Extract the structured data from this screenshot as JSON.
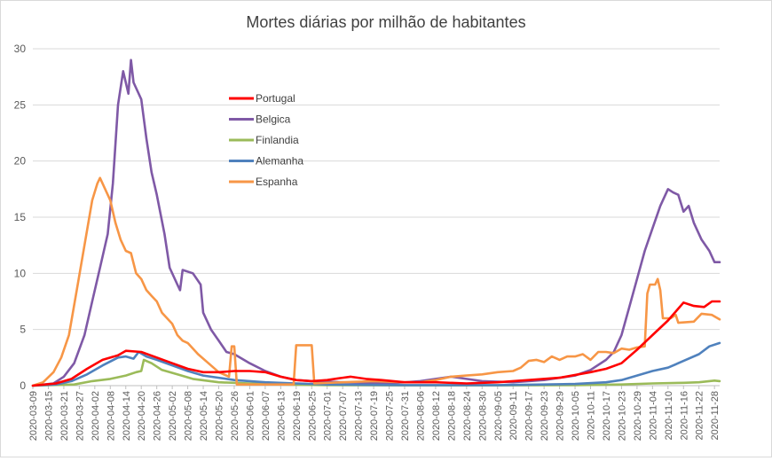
{
  "chart_data": {
    "type": "line",
    "title": "Mortes diárias por milhão de habitantes",
    "xlabel": "",
    "ylabel": "",
    "ylim": [
      0,
      30
    ],
    "yticks": [
      0,
      5,
      10,
      15,
      20,
      25,
      30
    ],
    "grid": "horizontal",
    "legend_position": "top-left-inside",
    "x_start": "2020-03-09",
    "x_end": "2020-11-30",
    "xtick_labels": [
      "2020-03-09",
      "2020-03-15",
      "2020-03-21",
      "2020-03-27",
      "2020-04-02",
      "2020-04-08",
      "2020-04-14",
      "2020-04-20",
      "2020-04-26",
      "2020-05-02",
      "2020-05-08",
      "2020-05-14",
      "2020-05-20",
      "2020-05-26",
      "2020-06-01",
      "2020-06-07",
      "2020-06-13",
      "2020-06-19",
      "2020-06-25",
      "2020-07-01",
      "2020-07-07",
      "2020-07-13",
      "2020-07-19",
      "2020-07-25",
      "2020-07-31",
      "2020-08-06",
      "2020-08-12",
      "2020-08-18",
      "2020-08-24",
      "2020-08-30",
      "2020-09-05",
      "2020-09-11",
      "2020-09-17",
      "2020-09-23",
      "2020-09-29",
      "2020-10-05",
      "2020-10-11",
      "2020-10-17",
      "2020-10-23",
      "2020-10-29",
      "2020-11-04",
      "2020-11-10",
      "2020-11-16",
      "2020-11-22",
      "2020-11-28"
    ],
    "series": [
      {
        "name": "Portugal",
        "color": "#ff0000",
        "points": [
          [
            "2020-03-09",
            0
          ],
          [
            "2020-03-18",
            0.2
          ],
          [
            "2020-03-24",
            0.6
          ],
          [
            "2020-03-30",
            1.5
          ],
          [
            "2020-04-05",
            2.3
          ],
          [
            "2020-04-11",
            2.7
          ],
          [
            "2020-04-14",
            3.1
          ],
          [
            "2020-04-20",
            3.0
          ],
          [
            "2020-04-26",
            2.5
          ],
          [
            "2020-05-02",
            2.0
          ],
          [
            "2020-05-08",
            1.5
          ],
          [
            "2020-05-14",
            1.2
          ],
          [
            "2020-05-20",
            1.2
          ],
          [
            "2020-05-26",
            1.3
          ],
          [
            "2020-06-01",
            1.3
          ],
          [
            "2020-06-07",
            1.2
          ],
          [
            "2020-06-13",
            0.8
          ],
          [
            "2020-06-19",
            0.5
          ],
          [
            "2020-06-25",
            0.4
          ],
          [
            "2020-07-01",
            0.5
          ],
          [
            "2020-07-07",
            0.7
          ],
          [
            "2020-07-10",
            0.8
          ],
          [
            "2020-07-16",
            0.6
          ],
          [
            "2020-07-22",
            0.5
          ],
          [
            "2020-07-31",
            0.3
          ],
          [
            "2020-08-12",
            0.3
          ],
          [
            "2020-08-24",
            0.2
          ],
          [
            "2020-09-05",
            0.3
          ],
          [
            "2020-09-17",
            0.5
          ],
          [
            "2020-09-29",
            0.7
          ],
          [
            "2020-10-11",
            1.2
          ],
          [
            "2020-10-17",
            1.5
          ],
          [
            "2020-10-23",
            2.0
          ],
          [
            "2020-10-29",
            3.2
          ],
          [
            "2020-11-04",
            4.5
          ],
          [
            "2020-11-10",
            5.8
          ],
          [
            "2020-11-16",
            7.4
          ],
          [
            "2020-11-20",
            7.1
          ],
          [
            "2020-11-24",
            7.0
          ],
          [
            "2020-11-27",
            7.5
          ],
          [
            "2020-11-30",
            7.5
          ]
        ]
      },
      {
        "name": "Belgica",
        "color": "#7f59a6",
        "points": [
          [
            "2020-03-09",
            0
          ],
          [
            "2020-03-17",
            0.2
          ],
          [
            "2020-03-21",
            0.8
          ],
          [
            "2020-03-25",
            2.0
          ],
          [
            "2020-03-29",
            4.5
          ],
          [
            "2020-04-01",
            7.5
          ],
          [
            "2020-04-04",
            10.5
          ],
          [
            "2020-04-07",
            13.5
          ],
          [
            "2020-04-09",
            18.0
          ],
          [
            "2020-04-11",
            25.0
          ],
          [
            "2020-04-13",
            28.0
          ],
          [
            "2020-04-15",
            26.0
          ],
          [
            "2020-04-16",
            29.0
          ],
          [
            "2020-04-17",
            27.0
          ],
          [
            "2020-04-20",
            25.5
          ],
          [
            "2020-04-22",
            22.0
          ],
          [
            "2020-04-24",
            19.0
          ],
          [
            "2020-04-26",
            17.0
          ],
          [
            "2020-04-29",
            13.5
          ],
          [
            "2020-05-01",
            10.5
          ],
          [
            "2020-05-04",
            9.0
          ],
          [
            "2020-05-05",
            8.5
          ],
          [
            "2020-05-06",
            10.3
          ],
          [
            "2020-05-10",
            10.0
          ],
          [
            "2020-05-13",
            9.0
          ],
          [
            "2020-05-14",
            6.5
          ],
          [
            "2020-05-17",
            5.0
          ],
          [
            "2020-05-20",
            4.0
          ],
          [
            "2020-05-23",
            3.0
          ],
          [
            "2020-05-26",
            2.8
          ],
          [
            "2020-06-01",
            2.0
          ],
          [
            "2020-06-07",
            1.3
          ],
          [
            "2020-06-13",
            0.8
          ],
          [
            "2020-06-19",
            0.5
          ],
          [
            "2020-06-25",
            0.4
          ],
          [
            "2020-07-07",
            0.3
          ],
          [
            "2020-07-25",
            0.2
          ],
          [
            "2020-08-06",
            0.4
          ],
          [
            "2020-08-12",
            0.6
          ],
          [
            "2020-08-18",
            0.8
          ],
          [
            "2020-08-24",
            0.6
          ],
          [
            "2020-08-30",
            0.4
          ],
          [
            "2020-09-11",
            0.3
          ],
          [
            "2020-09-23",
            0.5
          ],
          [
            "2020-10-05",
            0.9
          ],
          [
            "2020-10-11",
            1.4
          ],
          [
            "2020-10-17",
            2.3
          ],
          [
            "2020-10-20",
            3.0
          ],
          [
            "2020-10-23",
            4.5
          ],
          [
            "2020-10-26",
            7.0
          ],
          [
            "2020-10-29",
            9.5
          ],
          [
            "2020-11-01",
            12.0
          ],
          [
            "2020-11-04",
            14.0
          ],
          [
            "2020-11-07",
            16.0
          ],
          [
            "2020-11-10",
            17.5
          ],
          [
            "2020-11-12",
            17.2
          ],
          [
            "2020-11-14",
            17.0
          ],
          [
            "2020-11-16",
            15.5
          ],
          [
            "2020-11-18",
            16.0
          ],
          [
            "2020-11-20",
            14.5
          ],
          [
            "2020-11-23",
            13.0
          ],
          [
            "2020-11-26",
            12.0
          ],
          [
            "2020-11-28",
            11.0
          ],
          [
            "2020-11-30",
            11.0
          ]
        ]
      },
      {
        "name": "Finlandia",
        "color": "#9bbb59",
        "points": [
          [
            "2020-03-09",
            0
          ],
          [
            "2020-03-25",
            0.1
          ],
          [
            "2020-04-01",
            0.4
          ],
          [
            "2020-04-08",
            0.6
          ],
          [
            "2020-04-14",
            0.9
          ],
          [
            "2020-04-18",
            1.2
          ],
          [
            "2020-04-20",
            1.3
          ],
          [
            "2020-04-21",
            2.3
          ],
          [
            "2020-04-24",
            2.0
          ],
          [
            "2020-04-28",
            1.4
          ],
          [
            "2020-05-04",
            1.0
          ],
          [
            "2020-05-10",
            0.6
          ],
          [
            "2020-05-20",
            0.3
          ],
          [
            "2020-06-01",
            0.2
          ],
          [
            "2020-06-13",
            0.1
          ],
          [
            "2020-07-01",
            0.05
          ],
          [
            "2020-08-01",
            0.02
          ],
          [
            "2020-09-05",
            0.02
          ],
          [
            "2020-10-05",
            0.05
          ],
          [
            "2020-10-23",
            0.1
          ],
          [
            "2020-11-04",
            0.2
          ],
          [
            "2020-11-16",
            0.25
          ],
          [
            "2020-11-22",
            0.3
          ],
          [
            "2020-11-28",
            0.45
          ],
          [
            "2020-11-30",
            0.4
          ]
        ]
      },
      {
        "name": "Alemanha",
        "color": "#4f81bd",
        "points": [
          [
            "2020-03-09",
            0
          ],
          [
            "2020-03-18",
            0.1
          ],
          [
            "2020-03-24",
            0.4
          ],
          [
            "2020-03-30",
            1.0
          ],
          [
            "2020-04-05",
            1.8
          ],
          [
            "2020-04-11",
            2.5
          ],
          [
            "2020-04-14",
            2.6
          ],
          [
            "2020-04-17",
            2.4
          ],
          [
            "2020-04-19",
            3.0
          ],
          [
            "2020-04-22",
            2.6
          ],
          [
            "2020-04-26",
            2.3
          ],
          [
            "2020-05-02",
            1.8
          ],
          [
            "2020-05-08",
            1.3
          ],
          [
            "2020-05-14",
            0.9
          ],
          [
            "2020-05-20",
            0.7
          ],
          [
            "2020-05-26",
            0.5
          ],
          [
            "2020-06-01",
            0.4
          ],
          [
            "2020-06-07",
            0.3
          ],
          [
            "2020-06-19",
            0.2
          ],
          [
            "2020-07-01",
            0.1
          ],
          [
            "2020-08-01",
            0.05
          ],
          [
            "2020-09-05",
            0.05
          ],
          [
            "2020-09-23",
            0.1
          ],
          [
            "2020-10-05",
            0.15
          ],
          [
            "2020-10-17",
            0.3
          ],
          [
            "2020-10-23",
            0.5
          ],
          [
            "2020-10-29",
            0.9
          ],
          [
            "2020-11-04",
            1.3
          ],
          [
            "2020-11-10",
            1.6
          ],
          [
            "2020-11-16",
            2.2
          ],
          [
            "2020-11-22",
            2.8
          ],
          [
            "2020-11-26",
            3.5
          ],
          [
            "2020-11-30",
            3.8
          ]
        ]
      },
      {
        "name": "Espanha",
        "color": "#f79646",
        "points": [
          [
            "2020-03-09",
            0
          ],
          [
            "2020-03-13",
            0.3
          ],
          [
            "2020-03-17",
            1.2
          ],
          [
            "2020-03-20",
            2.5
          ],
          [
            "2020-03-23",
            4.5
          ],
          [
            "2020-03-26",
            8.5
          ],
          [
            "2020-03-29",
            12.5
          ],
          [
            "2020-04-01",
            16.5
          ],
          [
            "2020-04-03",
            18.0
          ],
          [
            "2020-04-04",
            18.5
          ],
          [
            "2020-04-06",
            17.5
          ],
          [
            "2020-04-08",
            16.5
          ],
          [
            "2020-04-10",
            14.5
          ],
          [
            "2020-04-12",
            13.0
          ],
          [
            "2020-04-14",
            12.0
          ],
          [
            "2020-04-16",
            11.8
          ],
          [
            "2020-04-18",
            10.0
          ],
          [
            "2020-04-20",
            9.5
          ],
          [
            "2020-04-22",
            8.5
          ],
          [
            "2020-04-24",
            8.0
          ],
          [
            "2020-04-26",
            7.5
          ],
          [
            "2020-04-28",
            6.5
          ],
          [
            "2020-04-30",
            6.0
          ],
          [
            "2020-05-02",
            5.5
          ],
          [
            "2020-05-04",
            4.5
          ],
          [
            "2020-05-06",
            4.0
          ],
          [
            "2020-05-08",
            3.8
          ],
          [
            "2020-05-12",
            2.8
          ],
          [
            "2020-05-16",
            2.0
          ],
          [
            "2020-05-20",
            1.2
          ],
          [
            "2020-05-24",
            0.8
          ],
          [
            "2020-05-25",
            3.5
          ],
          [
            "2020-05-26",
            3.5
          ],
          [
            "2020-05-27",
            0.1
          ],
          [
            "2020-06-01",
            0.1
          ],
          [
            "2020-06-13",
            0.1
          ],
          [
            "2020-06-18",
            0.1
          ],
          [
            "2020-06-19",
            3.6
          ],
          [
            "2020-06-25",
            3.6
          ],
          [
            "2020-06-26",
            0.2
          ],
          [
            "2020-07-07",
            0.3
          ],
          [
            "2020-07-19",
            0.4
          ],
          [
            "2020-07-31",
            0.3
          ],
          [
            "2020-08-06",
            0.3
          ],
          [
            "2020-08-12",
            0.5
          ],
          [
            "2020-08-18",
            0.8
          ],
          [
            "2020-08-24",
            0.9
          ],
          [
            "2020-08-30",
            1.0
          ],
          [
            "2020-09-05",
            1.2
          ],
          [
            "2020-09-11",
            1.3
          ],
          [
            "2020-09-14",
            1.6
          ],
          [
            "2020-09-17",
            2.2
          ],
          [
            "2020-09-20",
            2.3
          ],
          [
            "2020-09-23",
            2.1
          ],
          [
            "2020-09-26",
            2.6
          ],
          [
            "2020-09-29",
            2.3
          ],
          [
            "2020-10-02",
            2.6
          ],
          [
            "2020-10-05",
            2.6
          ],
          [
            "2020-10-08",
            2.8
          ],
          [
            "2020-10-11",
            2.3
          ],
          [
            "2020-10-14",
            3.0
          ],
          [
            "2020-10-17",
            3.0
          ],
          [
            "2020-10-20",
            2.9
          ],
          [
            "2020-10-23",
            3.3
          ],
          [
            "2020-10-26",
            3.2
          ],
          [
            "2020-10-29",
            3.4
          ],
          [
            "2020-11-01",
            3.5
          ],
          [
            "2020-11-02",
            8.2
          ],
          [
            "2020-11-03",
            9.0
          ],
          [
            "2020-11-05",
            9.0
          ],
          [
            "2020-11-06",
            9.5
          ],
          [
            "2020-11-07",
            8.5
          ],
          [
            "2020-11-08",
            6.0
          ],
          [
            "2020-11-11",
            6.0
          ],
          [
            "2020-11-13",
            6.3
          ],
          [
            "2020-11-14",
            5.6
          ],
          [
            "2020-11-20",
            5.7
          ],
          [
            "2020-11-23",
            6.4
          ],
          [
            "2020-11-27",
            6.3
          ],
          [
            "2020-11-30",
            5.9
          ]
        ]
      }
    ]
  }
}
